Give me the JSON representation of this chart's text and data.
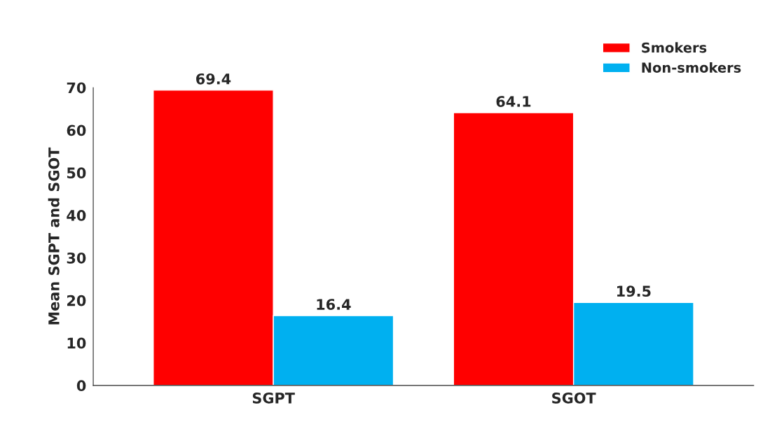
{
  "chart_data": {
    "type": "bar",
    "ylabel": "Mean SGPT and SGOT",
    "categories": [
      "SGPT",
      "SGOT"
    ],
    "series": [
      {
        "name": "Smokers",
        "color": "#ff0000",
        "values": [
          69.4,
          64.1
        ]
      },
      {
        "name": "Non-smokers",
        "color": "#00b0f0",
        "values": [
          16.4,
          19.5
        ]
      }
    ],
    "ylim": [
      0,
      70
    ],
    "yticks": [
      0,
      10,
      20,
      30,
      40,
      50,
      60,
      70
    ],
    "grid": false,
    "legend": "top right",
    "data_labels": true
  }
}
